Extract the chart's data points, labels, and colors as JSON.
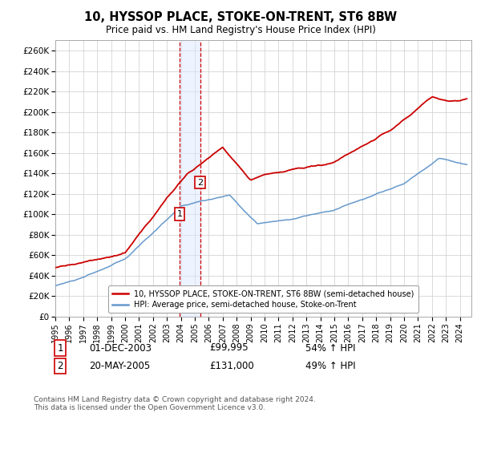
{
  "title": "10, HYSSOP PLACE, STOKE-ON-TRENT, ST6 8BW",
  "subtitle": "Price paid vs. HM Land Registry's House Price Index (HPI)",
  "ylim": [
    0,
    270000
  ],
  "yticks": [
    0,
    20000,
    40000,
    60000,
    80000,
    100000,
    120000,
    140000,
    160000,
    180000,
    200000,
    220000,
    240000,
    260000
  ],
  "ytick_labels": [
    "£0",
    "£20K",
    "£40K",
    "£60K",
    "£80K",
    "£100K",
    "£120K",
    "£140K",
    "£160K",
    "£180K",
    "£200K",
    "£220K",
    "£240K",
    "£260K"
  ],
  "sale1_date_num": 2003.917,
  "sale1_price": 99995,
  "sale1_label": "1",
  "sale1_date_str": "01-DEC-2003",
  "sale1_price_str": "£99,995",
  "sale1_hpi_str": "54% ↑ HPI",
  "sale2_date_num": 2005.38,
  "sale2_price": 131000,
  "sale2_label": "2",
  "sale2_date_str": "20-MAY-2005",
  "sale2_price_str": "£131,000",
  "sale2_hpi_str": "49% ↑ HPI",
  "property_line_color": "#cc0000",
  "hpi_line_color": "#6699cc",
  "shade_color": "#dde8ff",
  "shade_alpha": 0.5,
  "vline_color": "#cc0000",
  "legend1_label": "10, HYSSOP PLACE, STOKE-ON-TRENT, ST6 8BW (semi-detached house)",
  "legend2_label": "HPI: Average price, semi-detached house, Stoke-on-Trent",
  "footnote": "Contains HM Land Registry data © Crown copyright and database right 2024.\nThis data is licensed under the Open Government Licence v3.0.",
  "background_color": "#ffffff",
  "grid_color": "#cccccc"
}
